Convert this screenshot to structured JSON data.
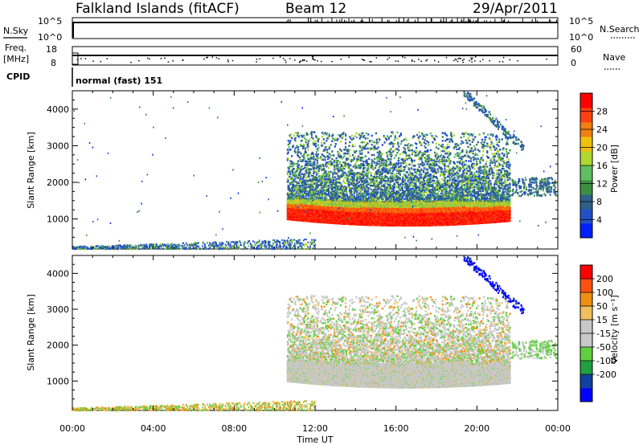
{
  "header": {
    "station": "Falkland Islands (fitACF)",
    "beam": "Beam 12",
    "date": "29/Apr/2011"
  },
  "status_panels": {
    "nsky_label": "N.Sky",
    "nsky_ticks": [
      "10^5",
      "10^0"
    ],
    "nsearch_label": "N.Search",
    "freq_label_1": "Freq.",
    "freq_label_2": "[MHz]",
    "freq_ticks": [
      "18",
      "8"
    ],
    "nave_label": "Nave",
    "nave_ticks": [
      "60",
      "0"
    ],
    "cpid_label": "CPID",
    "cpid_value": "normal (fast) 151"
  },
  "colors": {
    "power_scale": [
      "#0020ff",
      "#2050c8",
      "#306088",
      "#3a9040",
      "#5ec060",
      "#b0d830",
      "#f0c010",
      "#f08010",
      "#ff4010",
      "#ff0000"
    ],
    "velocity_scale": [
      "#0000ff",
      "#1040a0",
      "#20a040",
      "#60d040",
      "#c8c8c8",
      "#c8c8c8",
      "#f0c060",
      "#f09010",
      "#ff5010",
      "#ff0000"
    ]
  },
  "chart_data": [
    {
      "type": "heatmap",
      "name": "power",
      "x_unit": "hours UT",
      "xlim": [
        0,
        24
      ],
      "ylim": [
        180,
        4500
      ],
      "ylabel": "Slant Range [km]",
      "yticks": [
        "1000",
        "2000",
        "3000",
        "4000"
      ],
      "colorbar_label": "Power [dB]",
      "colorbar_ticks": [
        "4",
        "8",
        "12",
        "16",
        "20",
        "24",
        "28"
      ],
      "colorbar_range": [
        0,
        32
      ]
    },
    {
      "type": "heatmap",
      "name": "velocity",
      "x_unit": "hours UT",
      "xlim": [
        0,
        24
      ],
      "ylim": [
        180,
        4500
      ],
      "ylabel": "Slant Range [km]",
      "yticks": [
        "1000",
        "2000",
        "3000",
        "4000"
      ],
      "xticks": [
        "00:00",
        "04:00",
        "08:00",
        "12:00",
        "16:00",
        "20:00",
        "00:00"
      ],
      "xlabel": "Time UT",
      "colorbar_label": "Velocity [m s⁻¹]",
      "colorbar_ticks": [
        "200",
        "100",
        "50",
        "15",
        "-15",
        "-50",
        "-100",
        "-200"
      ]
    }
  ]
}
